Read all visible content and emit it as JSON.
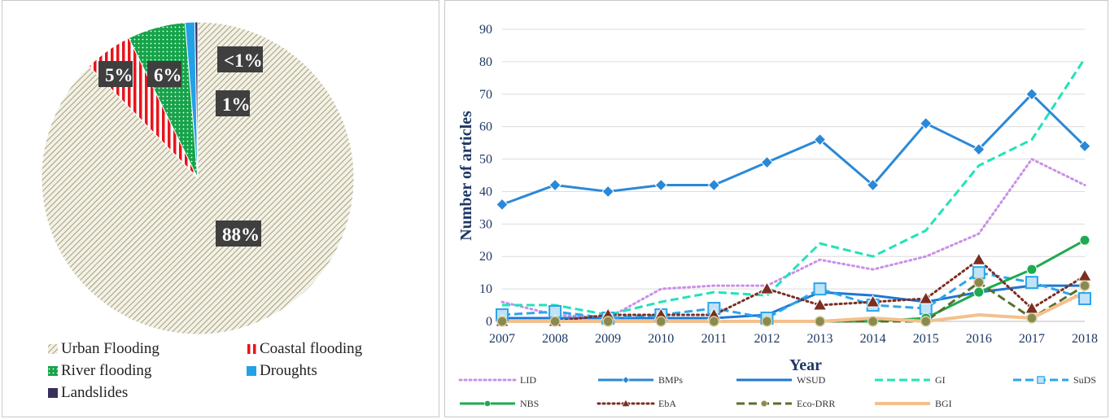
{
  "chart_data": [
    {
      "type": "pie",
      "slices": [
        {
          "label": "Urban Flooding",
          "value": 88,
          "data_label": "88%",
          "color": "#d6d2bc",
          "pattern": "hatch"
        },
        {
          "label": "Coastal flooding",
          "value": 5,
          "data_label": "5%",
          "color": "#e8141b",
          "pattern": "stripes"
        },
        {
          "label": "River flooding",
          "value": 6,
          "data_label": "6%",
          "color": "#16a34a",
          "pattern": "dots"
        },
        {
          "label": "Droughts",
          "value": 1,
          "data_label": "1%",
          "color": "#21a2e6",
          "pattern": "solid"
        },
        {
          "label": "Landslides",
          "value": 0.3,
          "data_label": "<1%",
          "color": "#3a2f5c",
          "pattern": "solid"
        }
      ],
      "legend_position": "bottom"
    },
    {
      "type": "line",
      "x": [
        "2007",
        "2008",
        "2009",
        "2010",
        "2011",
        "2012",
        "2013",
        "2014",
        "2015",
        "2016",
        "2017",
        "2018"
      ],
      "xlabel": "Year",
      "ylabel": "Number of articles",
      "ylim": [
        0,
        90
      ],
      "yticks": [
        0,
        10,
        20,
        30,
        40,
        50,
        60,
        70,
        80,
        90
      ],
      "grid": true,
      "legend_position": "bottom",
      "series": [
        {
          "name": "LID",
          "color": "#c990e8",
          "dash": "dot",
          "marker": "none",
          "values": [
            6,
            2,
            1,
            10,
            11,
            11,
            19,
            16,
            20,
            27,
            50,
            42
          ]
        },
        {
          "name": "BMPs",
          "color": "#2a88d8",
          "dash": "solid",
          "marker": "diamond",
          "values": [
            36,
            42,
            40,
            42,
            42,
            49,
            56,
            42,
            61,
            53,
            70,
            54
          ]
        },
        {
          "name": "WSUD",
          "color": "#1e78d2",
          "dash": "solid",
          "marker": "none",
          "values": [
            1,
            1,
            1,
            1,
            1,
            2,
            9,
            8,
            6,
            9,
            11,
            11
          ]
        },
        {
          "name": "GI",
          "color": "#22e3b8",
          "dash": "dash",
          "marker": "none",
          "values": [
            5,
            5,
            2,
            6,
            9,
            8,
            24,
            20,
            28,
            48,
            56,
            81
          ]
        },
        {
          "name": "SuDS",
          "color": "#2ba5ec",
          "dash": "dash",
          "marker": "box",
          "values": [
            2,
            3,
            1,
            2,
            4,
            1,
            10,
            5,
            4,
            15,
            12,
            7
          ]
        },
        {
          "name": "NBS",
          "color": "#1eaa50",
          "dash": "solid",
          "marker": "circle",
          "values": [
            0,
            0,
            0,
            0,
            0,
            0,
            0,
            0,
            1,
            9,
            16,
            25
          ]
        },
        {
          "name": "EbA",
          "color": "#7b2e22",
          "dash": "dot",
          "marker": "triangle",
          "values": [
            0,
            0,
            2,
            2,
            2,
            10,
            5,
            6,
            7,
            19,
            4,
            14
          ]
        },
        {
          "name": "Eco-DRR",
          "color": "#5a6e2e",
          "dash": "dash",
          "marker": "circle-light",
          "values": [
            0,
            0,
            0,
            0,
            0,
            0,
            0,
            0,
            0,
            12,
            1,
            11
          ]
        },
        {
          "name": "BGI",
          "color": "#f3c08c",
          "dash": "solid",
          "marker": "none",
          "values": [
            0,
            0,
            0,
            0,
            0,
            0,
            0,
            1,
            0,
            2,
            1,
            9
          ]
        }
      ]
    }
  ]
}
